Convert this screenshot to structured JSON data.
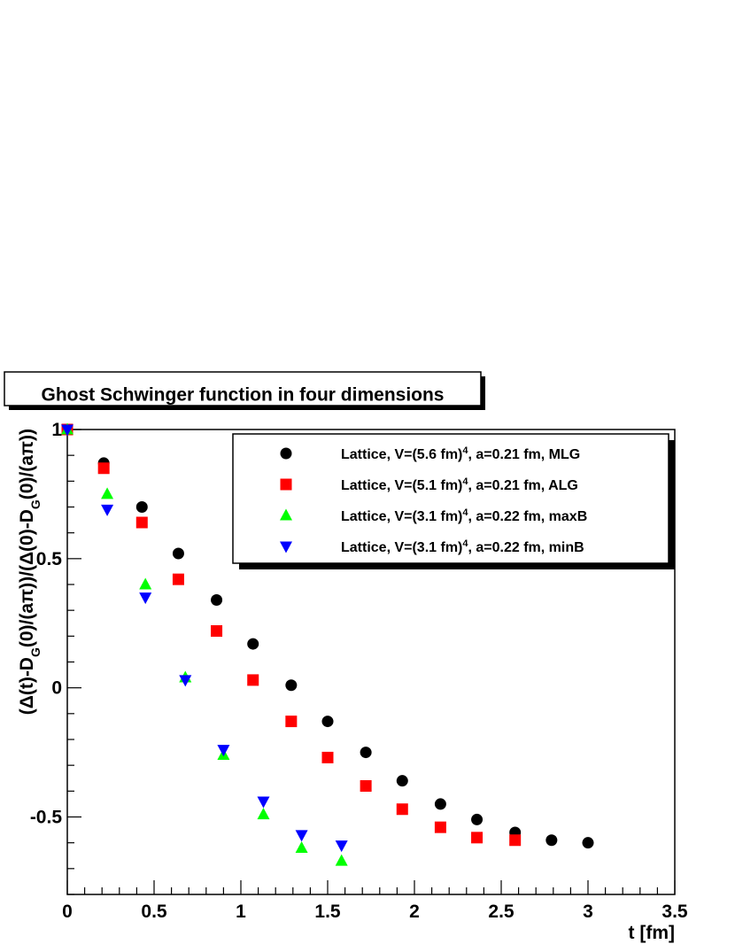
{
  "chart_data": {
    "type": "scatter",
    "title": "Ghost Schwinger function in four dimensions",
    "xlabel": "t [fm]",
    "ylabel": "(Δ(t)-D_G(0)/(aπ))/(Δ(0)-D_G(0)/(aπ))",
    "xlim": [
      0,
      3.5
    ],
    "ylim": [
      -0.8,
      1.0
    ],
    "x_ticks": [
      "0",
      "0.5",
      "1",
      "1.5",
      "2",
      "2.5",
      "3",
      "3.5"
    ],
    "y_ticks": [
      "-0.5",
      "0",
      "0.5",
      "1"
    ],
    "grid": false,
    "legend_position": "top-right",
    "series": [
      {
        "name": "Lattice, V=(5.6 fm)^4, a=0.21 fm, MLG",
        "legend": {
          "pre": "Lattice, V=(5.6 fm)",
          "sup": "4",
          "post": ", a=0.21 fm, MLG"
        },
        "color": "#000000",
        "marker": "circle",
        "x": [
          0.0,
          0.21,
          0.43,
          0.64,
          0.86,
          1.07,
          1.29,
          1.5,
          1.72,
          1.93,
          2.15,
          2.36,
          2.58,
          2.79,
          3.0
        ],
        "y": [
          1.0,
          0.87,
          0.7,
          0.52,
          0.34,
          0.17,
          0.01,
          -0.13,
          -0.25,
          -0.36,
          -0.45,
          -0.51,
          -0.56,
          -0.59,
          -0.6
        ]
      },
      {
        "name": "Lattice, V=(5.1 fm)^4, a=0.21 fm, ALG",
        "legend": {
          "pre": "Lattice, V=(5.1 fm)",
          "sup": "4",
          "post": ", a=0.21 fm, ALG"
        },
        "color": "#ff0000",
        "marker": "square",
        "x": [
          0.0,
          0.21,
          0.43,
          0.64,
          0.86,
          1.07,
          1.29,
          1.5,
          1.72,
          1.93,
          2.15,
          2.36,
          2.58
        ],
        "y": [
          1.0,
          0.85,
          0.64,
          0.42,
          0.22,
          0.03,
          -0.13,
          -0.27,
          -0.38,
          -0.47,
          -0.54,
          -0.58,
          -0.59
        ]
      },
      {
        "name": "Lattice, V=(3.1 fm)^4, a=0.22 fm, maxB",
        "legend": {
          "pre": "Lattice, V=(3.1 fm)",
          "sup": "4",
          "post": ", a=0.22 fm, maxB"
        },
        "color": "#00ff00",
        "marker": "triangle-up",
        "x": [
          0.0,
          0.23,
          0.45,
          0.68,
          0.9,
          1.13,
          1.35,
          1.58
        ],
        "y": [
          1.0,
          0.75,
          0.4,
          0.04,
          -0.26,
          -0.49,
          -0.62,
          -0.67
        ]
      },
      {
        "name": "Lattice, V=(3.1 fm)^4, a=0.22 fm, minB",
        "legend": {
          "pre": "Lattice, V=(3.1 fm)",
          "sup": "4",
          "post": ", a=0.22 fm, minB"
        },
        "color": "#0000ff",
        "marker": "triangle-down",
        "x": [
          0.0,
          0.23,
          0.45,
          0.68,
          0.9,
          1.13,
          1.35,
          1.58
        ],
        "y": [
          1.0,
          0.69,
          0.35,
          0.03,
          -0.24,
          -0.44,
          -0.57,
          -0.61
        ]
      }
    ]
  }
}
